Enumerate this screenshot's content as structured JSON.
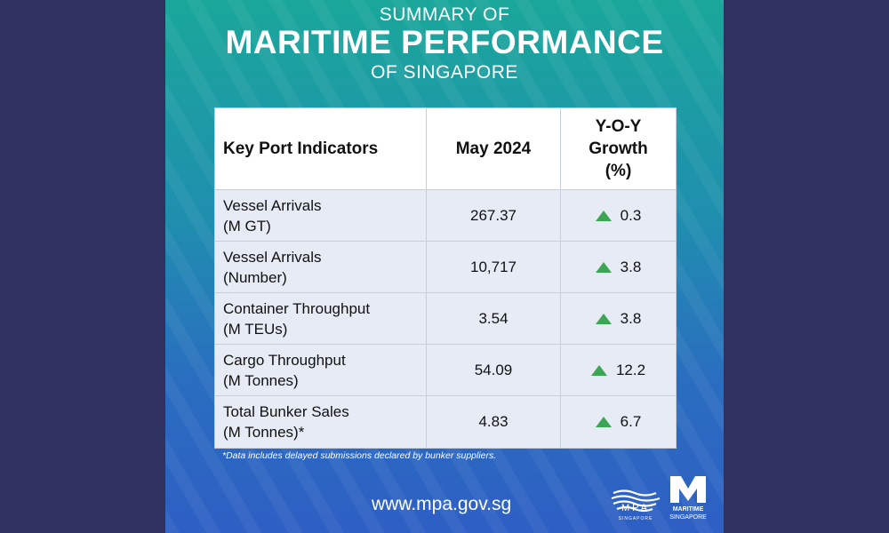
{
  "header": {
    "line1": "SUMMARY OF",
    "line2": "MARITIME PERFORMANCE",
    "line3": "OF SINGAPORE"
  },
  "table": {
    "headers": {
      "indicator": "Key Port Indicators",
      "period": "May 2024",
      "growth_line1": "Y-O-Y",
      "growth_line2": "Growth",
      "growth_line3": "(%)"
    },
    "rows": [
      {
        "label1": "Vessel Arrivals",
        "label2": "(M GT)",
        "value": "267.37",
        "growth": "0.3"
      },
      {
        "label1": "Vessel Arrivals",
        "label2": "(Number)",
        "value": "10,717",
        "growth": "3.8"
      },
      {
        "label1": "Container Throughput",
        "label2": "(M TEUs)",
        "value": "3.54",
        "growth": "3.8"
      },
      {
        "label1": "Cargo Throughput",
        "label2": "(M Tonnes)",
        "value": "54.09",
        "growth": "12.2"
      },
      {
        "label1": "Total Bunker Sales",
        "label2": "(M Tonnes)*",
        "value": "4.83",
        "growth": "6.7"
      }
    ],
    "growth_icon": "up-triangle-icon",
    "growth_color": "#3ca655"
  },
  "footnote": "*Data includes delayed submissions declared by bunker suppliers.",
  "website": "www.mpa.gov.sg",
  "logos": {
    "mpa_text": "MPA",
    "mpa_sub": "SINGAPORE",
    "maritime_line1": "MARITIME",
    "maritime_line2": "SINGAPORE"
  }
}
